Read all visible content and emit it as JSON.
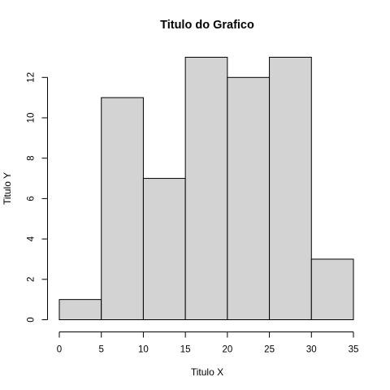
{
  "chart_data": {
    "type": "bar",
    "title": "Titulo do Grafico",
    "xlabel": "Titulo X",
    "ylabel": "Titulo Y",
    "bins": [
      {
        "from": 0,
        "to": 5,
        "count": 1
      },
      {
        "from": 5,
        "to": 10,
        "count": 11
      },
      {
        "from": 10,
        "to": 15,
        "count": 7
      },
      {
        "from": 15,
        "to": 20,
        "count": 13
      },
      {
        "from": 20,
        "to": 25,
        "count": 12
      },
      {
        "from": 25,
        "to": 30,
        "count": 13
      },
      {
        "from": 30,
        "to": 35,
        "count": 3
      }
    ],
    "xlim": [
      0,
      35
    ],
    "ylim": [
      0,
      13
    ],
    "xticks": [
      0,
      5,
      10,
      15,
      20,
      25,
      30,
      35
    ],
    "yticks": [
      0,
      2,
      4,
      6,
      8,
      10,
      12
    ],
    "grid": false,
    "bar_color": "#d3d3d3",
    "edge_color": "#000000"
  }
}
